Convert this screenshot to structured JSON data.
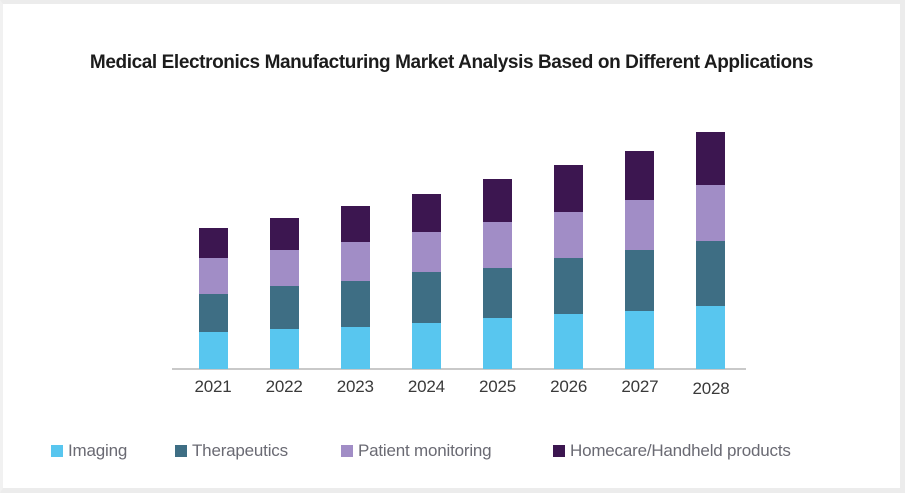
{
  "chart_data": {
    "type": "bar",
    "stacked": true,
    "title": "Medical Electronics Manufacturing Market Analysis Based on Different Applications",
    "categories": [
      "2021",
      "2022",
      "2023",
      "2024",
      "2025",
      "2026",
      "2027",
      "2028"
    ],
    "series": [
      {
        "name": "Imaging",
        "color": "#58c6ef",
        "values": [
          37,
          40,
          42,
          46,
          51,
          55,
          58,
          63
        ]
      },
      {
        "name": "Therapeutics",
        "color": "#3e6e84",
        "values": [
          38,
          43,
          46,
          51,
          50,
          56,
          61,
          65
        ]
      },
      {
        "name": "Patient monitoring",
        "color": "#a18dc6",
        "values": [
          36,
          36,
          39,
          40,
          46,
          46,
          50,
          56
        ]
      },
      {
        "name": "Homecare/Handheld products",
        "color": "#3c1650",
        "values": [
          30,
          32,
          36,
          38,
          43,
          47,
          49,
          53
        ]
      }
    ],
    "stack_totals": [
      141,
      151,
      163,
      175,
      190,
      204,
      218,
      237
    ],
    "xlabel": "",
    "ylabel": "",
    "y_axis_visible": false,
    "gridlines": false,
    "legend_position": "bottom",
    "axis_line_color": "#c9c9c9",
    "note_units": "relative units estimated from bar pixel heights; no value axis shown in source"
  }
}
